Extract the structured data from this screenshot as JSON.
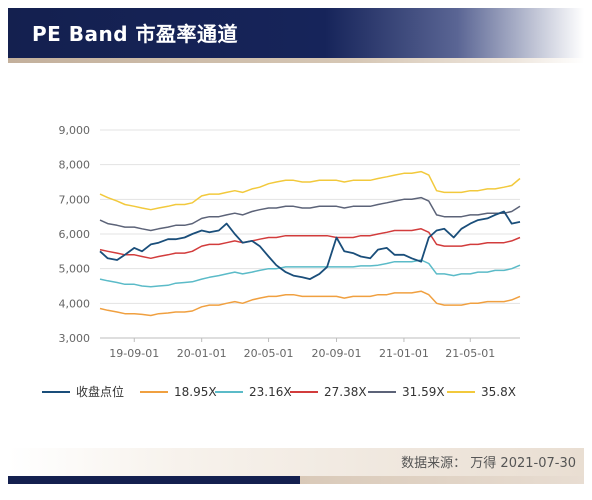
{
  "header": {
    "title": "PE Band 市盈率通道"
  },
  "footer": {
    "source": "数据来源： 万得 2021-07-30"
  },
  "colors": {
    "header_navy": "#14204f",
    "accent_tan": "#c3b09c"
  },
  "chart_data": {
    "type": "line",
    "title": "",
    "xlabel": "",
    "ylabel": "",
    "ylim": [
      3000,
      9000
    ],
    "y_ticks": [
      "3,000",
      "4,000",
      "5,000",
      "6,000",
      "7,000",
      "8,000",
      "9,000"
    ],
    "y_tick_values": [
      3000,
      4000,
      5000,
      6000,
      7000,
      8000,
      9000
    ],
    "x_range": [
      "2019-07-01",
      "2021-07-30"
    ],
    "x_ticks": [
      {
        "label": "19-09-01",
        "date": "2019-09-01"
      },
      {
        "label": "20-01-01",
        "date": "2020-01-01"
      },
      {
        "label": "20-05-01",
        "date": "2020-05-01"
      },
      {
        "label": "20-09-01",
        "date": "2020-09-01"
      },
      {
        "label": "21-01-01",
        "date": "2021-01-01"
      },
      {
        "label": "21-05-01",
        "date": "2021-05-01"
      }
    ],
    "grid": "horizontal",
    "legend_position": "bottom",
    "dates": [
      "2019-07-01",
      "2019-07-15",
      "2019-08-01",
      "2019-08-15",
      "2019-09-01",
      "2019-09-15",
      "2019-10-01",
      "2019-10-15",
      "2019-11-01",
      "2019-11-15",
      "2019-12-01",
      "2019-12-15",
      "2020-01-01",
      "2020-01-15",
      "2020-02-01",
      "2020-02-15",
      "2020-03-01",
      "2020-03-15",
      "2020-04-01",
      "2020-04-15",
      "2020-05-01",
      "2020-05-15",
      "2020-06-01",
      "2020-06-15",
      "2020-07-01",
      "2020-07-15",
      "2020-08-01",
      "2020-08-15",
      "2020-09-01",
      "2020-09-15",
      "2020-10-01",
      "2020-10-15",
      "2020-11-01",
      "2020-11-15",
      "2020-12-01",
      "2020-12-15",
      "2021-01-01",
      "2021-01-15",
      "2021-02-01",
      "2021-02-15",
      "2021-03-01",
      "2021-03-15",
      "2021-04-01",
      "2021-04-15",
      "2021-05-01",
      "2021-05-15",
      "2021-06-01",
      "2021-06-15",
      "2021-07-01",
      "2021-07-15",
      "2021-07-30"
    ],
    "series": [
      {
        "name": "收盘点位",
        "color": "#1a4e7a",
        "values": [
          5500,
          5300,
          5250,
          5400,
          5600,
          5500,
          5700,
          5750,
          5850,
          5850,
          5900,
          6000,
          6100,
          6050,
          6100,
          6300,
          6000,
          5750,
          5800,
          5650,
          5350,
          5100,
          4900,
          4800,
          4750,
          4700,
          4850,
          5050,
          5900,
          5500,
          5450,
          5350,
          5300,
          5550,
          5600,
          5400,
          5400,
          5300,
          5200,
          5900,
          6100,
          6150,
          5900,
          6150,
          6300,
          6400,
          6450,
          6550,
          6650,
          6300,
          6350
        ]
      },
      {
        "name": "18.95X",
        "color": "#f0a040",
        "values": [
          3850,
          3800,
          3750,
          3700,
          3700,
          3680,
          3650,
          3700,
          3720,
          3750,
          3750,
          3780,
          3900,
          3950,
          3950,
          4000,
          4050,
          4000,
          4100,
          4150,
          4200,
          4200,
          4250,
          4250,
          4200,
          4200,
          4200,
          4200,
          4200,
          4150,
          4200,
          4200,
          4200,
          4250,
          4250,
          4300,
          4300,
          4300,
          4350,
          4250,
          4000,
          3950,
          3950,
          3950,
          4000,
          4000,
          4050,
          4050,
          4050,
          4100,
          4200
        ]
      },
      {
        "name": "23.16X",
        "color": "#5bbbc8",
        "values": [
          4700,
          4650,
          4600,
          4550,
          4550,
          4500,
          4480,
          4500,
          4520,
          4580,
          4600,
          4620,
          4700,
          4750,
          4800,
          4850,
          4900,
          4850,
          4900,
          4950,
          5000,
          5000,
          5050,
          5050,
          5050,
          5050,
          5050,
          5050,
          5050,
          5050,
          5050,
          5080,
          5080,
          5100,
          5150,
          5200,
          5200,
          5200,
          5250,
          5150,
          4850,
          4850,
          4800,
          4850,
          4850,
          4900,
          4900,
          4950,
          4950,
          5000,
          5100
        ]
      },
      {
        "name": "27.38X",
        "color": "#d23c3c",
        "values": [
          5550,
          5500,
          5450,
          5400,
          5400,
          5350,
          5300,
          5350,
          5400,
          5450,
          5450,
          5500,
          5650,
          5700,
          5700,
          5750,
          5800,
          5750,
          5800,
          5850,
          5900,
          5900,
          5950,
          5950,
          5950,
          5950,
          5950,
          5950,
          5900,
          5900,
          5900,
          5950,
          5950,
          6000,
          6050,
          6100,
          6100,
          6100,
          6150,
          6050,
          5700,
          5650,
          5650,
          5650,
          5700,
          5700,
          5750,
          5750,
          5750,
          5800,
          5900
        ]
      },
      {
        "name": "31.59X",
        "color": "#5c6378",
        "values": [
          6400,
          6300,
          6250,
          6200,
          6200,
          6150,
          6100,
          6150,
          6200,
          6250,
          6250,
          6300,
          6450,
          6500,
          6500,
          6550,
          6600,
          6550,
          6650,
          6700,
          6750,
          6750,
          6800,
          6800,
          6750,
          6750,
          6800,
          6800,
          6800,
          6750,
          6800,
          6800,
          6800,
          6850,
          6900,
          6950,
          7000,
          7000,
          7050,
          6950,
          6550,
          6500,
          6500,
          6500,
          6550,
          6550,
          6600,
          6600,
          6600,
          6650,
          6800
        ]
      },
      {
        "name": "35.8X",
        "color": "#f2c93c",
        "values": [
          7150,
          7050,
          6950,
          6850,
          6800,
          6750,
          6700,
          6750,
          6800,
          6850,
          6850,
          6900,
          7100,
          7150,
          7150,
          7200,
          7250,
          7200,
          7300,
          7350,
          7450,
          7500,
          7550,
          7550,
          7500,
          7500,
          7550,
          7550,
          7550,
          7500,
          7550,
          7550,
          7550,
          7600,
          7650,
          7700,
          7750,
          7750,
          7800,
          7700,
          7250,
          7200,
          7200,
          7200,
          7250,
          7250,
          7300,
          7300,
          7350,
          7400,
          7600
        ]
      }
    ]
  }
}
